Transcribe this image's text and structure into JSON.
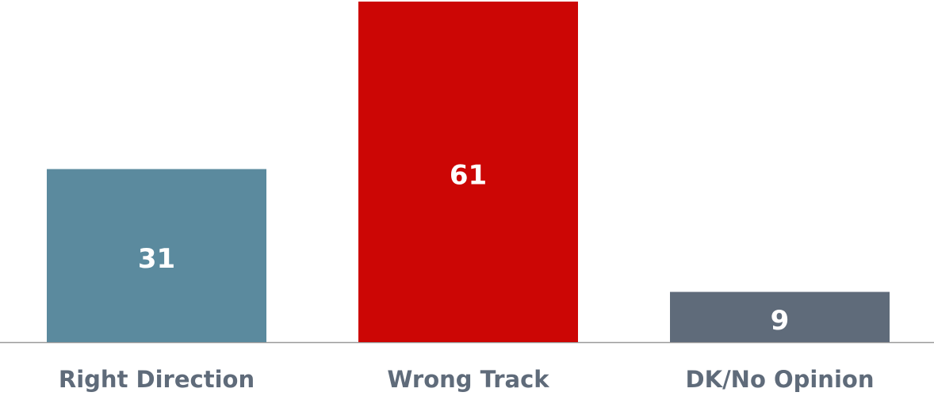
{
  "chart_data": {
    "type": "bar",
    "categories": [
      "Right Direction",
      "Wrong Track",
      "DK/No Opinion"
    ],
    "values": [
      31,
      61,
      9
    ],
    "colors": [
      "#5b8a9e",
      "#cc0605",
      "#5f6b7a"
    ]
  }
}
